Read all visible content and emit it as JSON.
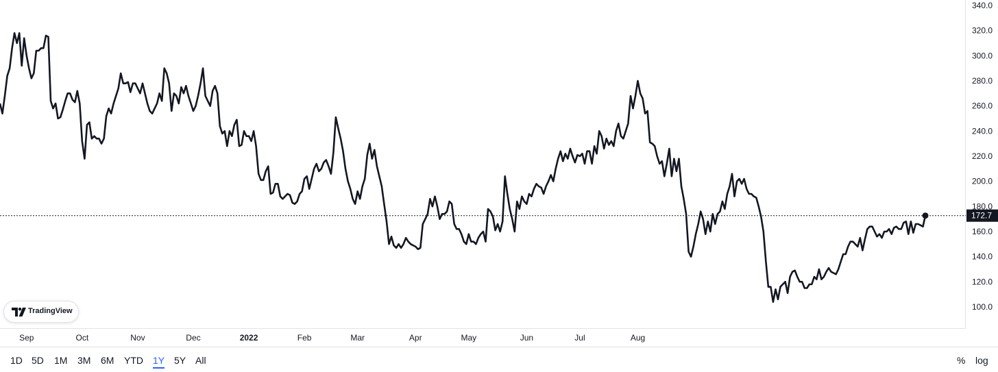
{
  "chart_data": {
    "type": "line",
    "series": [
      {
        "values": [
          262,
          254,
          268,
          284,
          290,
          306,
          318,
          310,
          318,
          292,
          314,
          300,
          290,
          282,
          286,
          304,
          304,
          306,
          306,
          316,
          315,
          264,
          258,
          262,
          250,
          251,
          257,
          264,
          270,
          270,
          265,
          263,
          272,
          262,
          232,
          218,
          245,
          247,
          234,
          236,
          234,
          234,
          230,
          234,
          252,
          258,
          254,
          262,
          268,
          274,
          286,
          278,
          278,
          279,
          271,
          278,
          278,
          274,
          270,
          278,
          270,
          262,
          256,
          254,
          258,
          262,
          270,
          264,
          290,
          286,
          278,
          256,
          270,
          268,
          262,
          275,
          270,
          276,
          268,
          262,
          256,
          260,
          268,
          278,
          290,
          268,
          264,
          260,
          272,
          276,
          270,
          244,
          238,
          240,
          228,
          240,
          236,
          245,
          249,
          228,
          229,
          240,
          236,
          236,
          232,
          240,
          228,
          206,
          201,
          201,
          208,
          212,
          190,
          191,
          198,
          198,
          188,
          186,
          188,
          190,
          189,
          183,
          182,
          184,
          190,
          192,
          202,
          204,
          194,
          202,
          210,
          214,
          208,
          210,
          215,
          217,
          212,
          206,
          223,
          251,
          242,
          234,
          224,
          210,
          200,
          194,
          186,
          182,
          192,
          186,
          196,
          202,
          221,
          230,
          218,
          225,
          212,
          204,
          196,
          182,
          168,
          150,
          156,
          149,
          147,
          150,
          147,
          150,
          155,
          152,
          150,
          149,
          148,
          146,
          147,
          166,
          170,
          174,
          186,
          180,
          188,
          180,
          170,
          174,
          174,
          176,
          184,
          182,
          166,
          162,
          162,
          158,
          152,
          150,
          158,
          152,
          152,
          150,
          155,
          158,
          160,
          152,
          178,
          176,
          172,
          161,
          166,
          160,
          168,
          204,
          190,
          178,
          170,
          160,
          184,
          178,
          188,
          184,
          182,
          190,
          188,
          194,
          198,
          196,
          195,
          190,
          196,
          200,
          205,
          200,
          210,
          218,
          224,
          216,
          222,
          218,
          226,
          220,
          215,
          221,
          220,
          222,
          214,
          224,
          224,
          214,
          228,
          222,
          240,
          236,
          226,
          234,
          229,
          232,
          228,
          240,
          246,
          236,
          234,
          240,
          246,
          268,
          258,
          268,
          280,
          270,
          266,
          254,
          256,
          231,
          230,
          228,
          220,
          214,
          216,
          204,
          214,
          226,
          204,
          218,
          208,
          218,
          196,
          186,
          174,
          144,
          140,
          148,
          158,
          166,
          176,
          170,
          158,
          168,
          160,
          174,
          166,
          174,
          176,
          184,
          178,
          190,
          196,
          206,
          188,
          200,
          202,
          198,
          202,
          194,
          190,
          190,
          188,
          187,
          180,
          172,
          160,
          136,
          116,
          116,
          104,
          114,
          106,
          116,
          118,
          120,
          111,
          124,
          128,
          129,
          124,
          120,
          120,
          115,
          115,
          118,
          118,
          124,
          122,
          130,
          122,
          124,
          128,
          131,
          128,
          127,
          126,
          130,
          136,
          142,
          142,
          148,
          152,
          152,
          150,
          148,
          155,
          145,
          154,
          162,
          164,
          164,
          160,
          156,
          158,
          155,
          160,
          160,
          162,
          158,
          163,
          164,
          162,
          162,
          167,
          168,
          158,
          168,
          159,
          166,
          166,
          165,
          164,
          172.7
        ]
      }
    ],
    "yticks": [
      "340.0",
      "320.0",
      "300.0",
      "280.0",
      "260.0",
      "240.0",
      "220.0",
      "200.0",
      "180.0",
      "160.0",
      "140.0",
      "120.0",
      "100.0"
    ],
    "xticks": [
      {
        "label": "Sep",
        "i": 11
      },
      {
        "label": "Oct",
        "i": 34
      },
      {
        "label": "Nov",
        "i": 57
      },
      {
        "label": "Dec",
        "i": 80
      },
      {
        "label": "2022",
        "i": 103,
        "bold": true
      },
      {
        "label": "Feb",
        "i": 126
      },
      {
        "label": "Mar",
        "i": 148
      },
      {
        "label": "Apr",
        "i": 172
      },
      {
        "label": "May",
        "i": 194
      },
      {
        "label": "Jun",
        "i": 218
      },
      {
        "label": "Jul",
        "i": 240
      },
      {
        "label": "Aug",
        "i": 264
      }
    ],
    "ylim": [
      92,
      346
    ],
    "last_value_label": "172.7",
    "line_color": "#131722",
    "grid": false
  },
  "logo": {
    "text": "TradingView"
  },
  "toolbar": {
    "timeframes": [
      "1D",
      "5D",
      "1M",
      "3M",
      "6M",
      "YTD",
      "1Y",
      "5Y",
      "All"
    ],
    "active": "1Y",
    "percent": "%",
    "log": "log"
  },
  "colors": {
    "accent": "#2962ff",
    "line": "#131722",
    "label_bg": "#131722"
  }
}
